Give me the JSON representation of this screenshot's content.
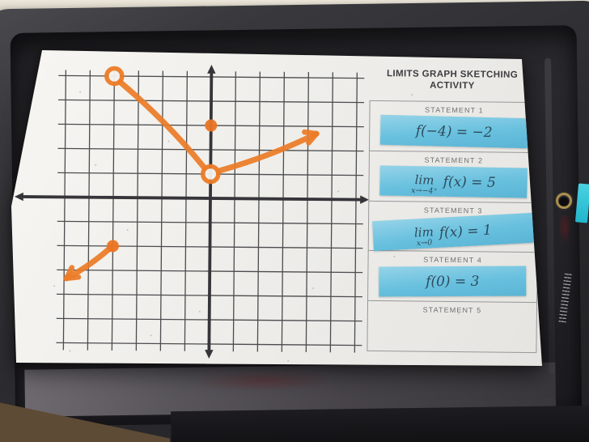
{
  "worksheet": {
    "title_line1": "LIMITS GRAPH SKETCHING",
    "title_line2": "ACTIVITY",
    "statements": [
      {
        "label": "STATEMENT 1",
        "has_slip": true,
        "limit": null,
        "expression": "f(−4) = −2"
      },
      {
        "label": "STATEMENT 2",
        "has_slip": true,
        "limit": {
          "word": "lim",
          "sub": "x→−4⁺"
        },
        "expression": "f(x) = 5"
      },
      {
        "label": "STATEMENT 3",
        "has_slip": true,
        "limit": {
          "word": "lim",
          "sub": "x→0"
        },
        "expression": "f(x) = 1"
      },
      {
        "label": "STATEMENT 4",
        "has_slip": true,
        "limit": null,
        "expression": "f(0) = 3"
      },
      {
        "label": "STATEMENT 5",
        "has_slip": false,
        "limit": null,
        "expression": ""
      }
    ]
  },
  "graph": {
    "x_gridlines": [
      -6,
      6
    ],
    "y_gridlines": [
      -6,
      5
    ],
    "pieces": [
      {
        "type": "ray",
        "from": [
          -4,
          -2
        ],
        "to": [
          -5.9,
          -3.35
        ],
        "arrow_at_to": true
      },
      {
        "type": "segment",
        "from": [
          -4,
          5
        ],
        "to": [
          0,
          1
        ],
        "arrow_at_to": false
      },
      {
        "type": "ray",
        "from": [
          0,
          1
        ],
        "to": [
          4.35,
          2.7
        ],
        "arrow_at_to": true
      }
    ],
    "points": [
      {
        "x": -4,
        "y": 5,
        "kind": "open"
      },
      {
        "x": -4,
        "y": -2,
        "kind": "closed"
      },
      {
        "x": 0,
        "y": 3,
        "kind": "closed"
      },
      {
        "x": 0,
        "y": 1,
        "kind": "open"
      }
    ]
  },
  "colors": {
    "marker_orange": "#ec7c28",
    "slip_blue": "#67c0de",
    "math_ink": "#2e4a5c",
    "paper": "#f1f0ec",
    "device_body": "#2b2b2f",
    "wall": "#ddd8cb",
    "grommet_brass": "#ab8f4d",
    "sticker_teal": "#2fc3d6",
    "carpet_brown": "#5e4b35"
  }
}
